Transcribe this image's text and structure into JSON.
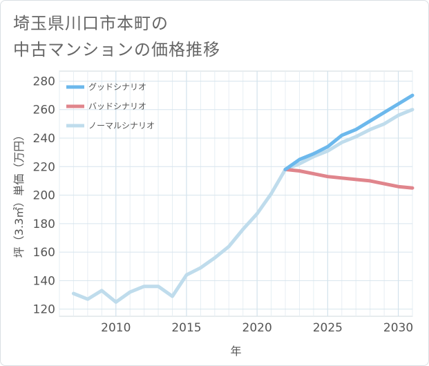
{
  "title_line1": "埼玉県川口市本町の",
  "title_line2": "中古マンションの価格推移",
  "chart_data": {
    "type": "line",
    "xlabel": "年",
    "ylabel": "坪（3.3㎡）単価（万円）",
    "xlim": [
      2006,
      2031
    ],
    "ylim": [
      115,
      287
    ],
    "x_ticks": [
      2010,
      2015,
      2020,
      2025,
      2030
    ],
    "y_ticks": [
      120,
      140,
      160,
      180,
      200,
      220,
      240,
      260,
      280
    ],
    "grid": true,
    "legend_position": "top-left",
    "series": [
      {
        "name": "グッドシナリオ",
        "color": "#6cb8ec",
        "x": [
          2022,
          2023,
          2024,
          2025,
          2026,
          2027,
          2028,
          2029,
          2030,
          2031
        ],
        "y": [
          218,
          225,
          229,
          234,
          242,
          246,
          252,
          258,
          264,
          270
        ]
      },
      {
        "name": "バッドシナリオ",
        "color": "#e0858c",
        "x": [
          2022,
          2023,
          2024,
          2025,
          2026,
          2027,
          2028,
          2029,
          2030,
          2031
        ],
        "y": [
          218,
          217,
          215,
          213,
          212,
          211,
          210,
          208,
          206,
          205
        ]
      },
      {
        "name": "ノーマルシナリオ",
        "color": "#bfdcec",
        "x": [
          2007,
          2008,
          2009,
          2010,
          2011,
          2012,
          2013,
          2014,
          2015,
          2016,
          2017,
          2018,
          2019,
          2020,
          2021,
          2022,
          2023,
          2024,
          2025,
          2026,
          2027,
          2028,
          2029,
          2030,
          2031
        ],
        "y": [
          131,
          127,
          133,
          125,
          132,
          136,
          136,
          129,
          144,
          149,
          156,
          164,
          176,
          187,
          201,
          218,
          222,
          227,
          231,
          237,
          241,
          246,
          250,
          256,
          260
        ]
      }
    ]
  }
}
